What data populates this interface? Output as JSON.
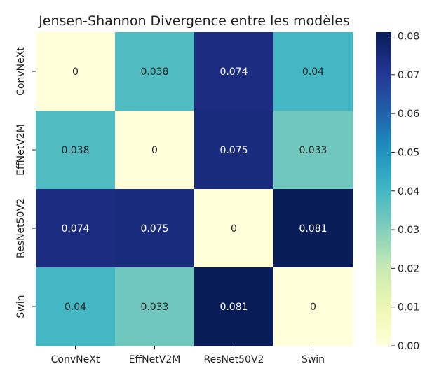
{
  "chart_data": {
    "type": "heatmap",
    "title": "Jensen-Shannon Divergence entre les modèles",
    "xlabel": "",
    "ylabel": "",
    "x_categories": [
      "ConvNeXt",
      "EffNetV2M",
      "ResNet50V2",
      "Swin"
    ],
    "y_categories": [
      "ConvNeXt",
      "EffNetV2M",
      "ResNet50V2",
      "Swin"
    ],
    "values": [
      [
        0,
        0.038,
        0.074,
        0.04
      ],
      [
        0.038,
        0,
        0.075,
        0.033
      ],
      [
        0.074,
        0.075,
        0,
        0.081
      ],
      [
        0.04,
        0.033,
        0.081,
        0
      ]
    ],
    "annotations": [
      [
        "0",
        "0.038",
        "0.074",
        "0.04"
      ],
      [
        "0.038",
        "0",
        "0.075",
        "0.033"
      ],
      [
        "0.074",
        "0.075",
        "0",
        "0.081"
      ],
      [
        "0.04",
        "0.033",
        "0.081",
        "0"
      ]
    ],
    "colormap": "YlGnBu",
    "vmin": 0,
    "vmax": 0.081,
    "colorbar_ticks": [
      "0.00",
      "0.01",
      "0.02",
      "0.03",
      "0.04",
      "0.05",
      "0.06",
      "0.07",
      "0.08"
    ],
    "grid": false,
    "legend": "colorbar-right"
  }
}
